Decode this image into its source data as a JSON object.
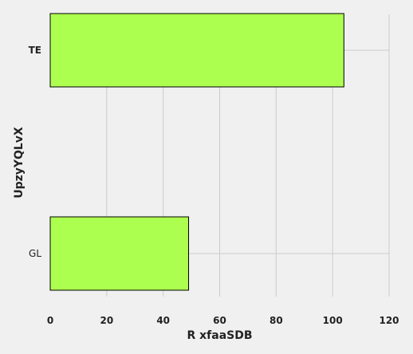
{
  "chart_data": {
    "type": "bar",
    "orientation": "horizontal",
    "categories": [
      "TE",
      "GL"
    ],
    "values": [
      104,
      49
    ],
    "title": "",
    "xlabel": "R xfaaSDB",
    "ylabel": "UpzyYQLvX",
    "xlim": [
      0,
      120
    ],
    "xticks": [
      0,
      20,
      40,
      60,
      80,
      100,
      120
    ],
    "grid": true,
    "bar_color": "#adff4f",
    "bar_edge_color": "#000000",
    "background": "#f0f0f0",
    "grid_color": "#cbcbcb"
  }
}
